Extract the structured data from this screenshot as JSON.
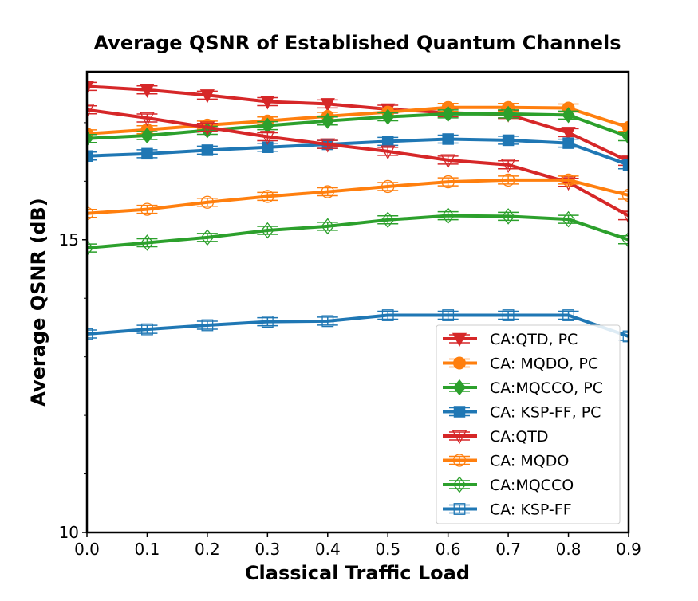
{
  "chart_data": {
    "type": "line",
    "title": "Average QSNR of Established Quantum Channels",
    "xlabel": "Classical Traffic Load",
    "ylabel": "Average QSNR (dB)",
    "xlim": [
      0,
      0.9
    ],
    "ylim": [
      10,
      17.87
    ],
    "x": [
      0.0,
      0.1,
      0.2,
      0.3,
      0.4,
      0.5,
      0.6,
      0.7,
      0.8,
      0.9
    ],
    "xticks": [
      "0.0",
      "0.1",
      "0.2",
      "0.3",
      "0.4",
      "0.5",
      "0.6",
      "0.7",
      "0.8",
      "0.9"
    ],
    "yticks_major": [
      {
        "value": 10,
        "label": "10"
      },
      {
        "value": 15,
        "label": "15"
      }
    ],
    "yticks_minor": [
      11,
      12,
      13,
      14,
      16,
      17
    ],
    "grid": false,
    "legend_position": "lower-right",
    "series": [
      {
        "name": "CA:QTD, PC",
        "color": "#d62728",
        "marker": "triangle-down",
        "filled": true,
        "values": [
          17.62,
          17.56,
          17.47,
          17.36,
          17.32,
          17.23,
          17.17,
          17.14,
          16.83,
          16.34
        ]
      },
      {
        "name": "CA: MQDO, PC",
        "color": "#ff7f0e",
        "marker": "circle",
        "filled": true,
        "values": [
          16.81,
          16.88,
          16.96,
          17.03,
          17.11,
          17.18,
          17.26,
          17.26,
          17.25,
          16.92
        ]
      },
      {
        "name": "CA:MQCCO, PC",
        "color": "#2ca02c",
        "marker": "diamond",
        "filled": true,
        "values": [
          16.73,
          16.78,
          16.87,
          16.95,
          17.03,
          17.1,
          17.15,
          17.15,
          17.13,
          16.76
        ]
      },
      {
        "name": "CA: KSP-FF, PC",
        "color": "#1f77b4",
        "marker": "square",
        "filled": true,
        "values": [
          16.43,
          16.47,
          16.53,
          16.58,
          16.63,
          16.68,
          16.72,
          16.7,
          16.65,
          16.28
        ]
      },
      {
        "name": "CA:QTD",
        "color": "#d62728",
        "marker": "triangle-down",
        "filled": false,
        "values": [
          17.22,
          17.08,
          16.92,
          16.76,
          16.63,
          16.51,
          16.36,
          16.28,
          15.98,
          15.41
        ]
      },
      {
        "name": "CA: MQDO",
        "color": "#ff7f0e",
        "marker": "circle",
        "filled": false,
        "values": [
          15.45,
          15.52,
          15.64,
          15.74,
          15.82,
          15.91,
          15.99,
          16.02,
          16.02,
          15.76
        ]
      },
      {
        "name": "CA:MQCCO",
        "color": "#2ca02c",
        "marker": "diamond",
        "filled": false,
        "values": [
          14.86,
          14.95,
          15.04,
          15.16,
          15.23,
          15.34,
          15.41,
          15.4,
          15.35,
          15.0
        ]
      },
      {
        "name": "CA: KSP-FF",
        "color": "#1f77b4",
        "marker": "square",
        "filled": false,
        "values": [
          13.39,
          13.47,
          13.54,
          13.6,
          13.61,
          13.71,
          13.71,
          13.71,
          13.71,
          13.35
        ]
      }
    ]
  }
}
